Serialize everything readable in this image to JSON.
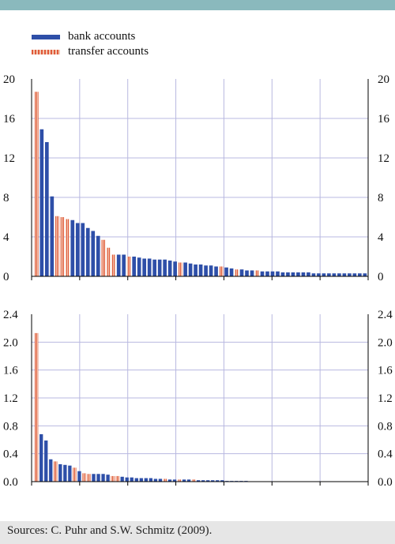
{
  "legend": {
    "bank_label": "bank accounts",
    "transfer_label": "transfer accounts"
  },
  "source": "Sources: C. Puhr and S.W. Schmitz (2009).",
  "colors": {
    "bank": "#2e4fa8",
    "transfer": "#e3a48c",
    "grid": "#b8b8e0",
    "band": "#8ab9bd"
  },
  "chart_data": [
    {
      "type": "bar",
      "ylim": [
        0,
        20
      ],
      "yticks": [
        "0",
        "4",
        "8",
        "12",
        "16",
        "20"
      ],
      "bars": [
        {
          "cat": "transfer",
          "value": 18.7
        },
        {
          "cat": "bank",
          "value": 14.9
        },
        {
          "cat": "bank",
          "value": 13.6
        },
        {
          "cat": "bank",
          "value": 8.1
        },
        {
          "cat": "transfer",
          "value": 6.1
        },
        {
          "cat": "transfer",
          "value": 6.0
        },
        {
          "cat": "transfer",
          "value": 5.8
        },
        {
          "cat": "bank",
          "value": 5.7
        },
        {
          "cat": "bank",
          "value": 5.4
        },
        {
          "cat": "bank",
          "value": 5.4
        },
        {
          "cat": "bank",
          "value": 4.9
        },
        {
          "cat": "bank",
          "value": 4.6
        },
        {
          "cat": "bank",
          "value": 4.1
        },
        {
          "cat": "transfer",
          "value": 3.7
        },
        {
          "cat": "transfer",
          "value": 2.9
        },
        {
          "cat": "transfer",
          "value": 2.2
        },
        {
          "cat": "bank",
          "value": 2.2
        },
        {
          "cat": "bank",
          "value": 2.2
        },
        {
          "cat": "transfer",
          "value": 2.0
        },
        {
          "cat": "bank",
          "value": 2.0
        },
        {
          "cat": "bank",
          "value": 1.9
        },
        {
          "cat": "bank",
          "value": 1.8
        },
        {
          "cat": "bank",
          "value": 1.8
        },
        {
          "cat": "bank",
          "value": 1.7
        },
        {
          "cat": "bank",
          "value": 1.7
        },
        {
          "cat": "bank",
          "value": 1.7
        },
        {
          "cat": "bank",
          "value": 1.6
        },
        {
          "cat": "bank",
          "value": 1.5
        },
        {
          "cat": "transfer",
          "value": 1.4
        },
        {
          "cat": "bank",
          "value": 1.4
        },
        {
          "cat": "bank",
          "value": 1.3
        },
        {
          "cat": "bank",
          "value": 1.2
        },
        {
          "cat": "bank",
          "value": 1.2
        },
        {
          "cat": "bank",
          "value": 1.1
        },
        {
          "cat": "bank",
          "value": 1.1
        },
        {
          "cat": "bank",
          "value": 1.0
        },
        {
          "cat": "transfer",
          "value": 1.0
        },
        {
          "cat": "bank",
          "value": 0.9
        },
        {
          "cat": "bank",
          "value": 0.8
        },
        {
          "cat": "transfer",
          "value": 0.7
        },
        {
          "cat": "bank",
          "value": 0.7
        },
        {
          "cat": "bank",
          "value": 0.6
        },
        {
          "cat": "bank",
          "value": 0.6
        },
        {
          "cat": "transfer",
          "value": 0.6
        },
        {
          "cat": "bank",
          "value": 0.5
        },
        {
          "cat": "bank",
          "value": 0.5
        },
        {
          "cat": "bank",
          "value": 0.5
        },
        {
          "cat": "bank",
          "value": 0.5
        },
        {
          "cat": "bank",
          "value": 0.4
        },
        {
          "cat": "bank",
          "value": 0.4
        },
        {
          "cat": "bank",
          "value": 0.4
        },
        {
          "cat": "bank",
          "value": 0.4
        },
        {
          "cat": "bank",
          "value": 0.4
        },
        {
          "cat": "bank",
          "value": 0.4
        },
        {
          "cat": "bank",
          "value": 0.3
        },
        {
          "cat": "bank",
          "value": 0.3
        },
        {
          "cat": "bank",
          "value": 0.3
        },
        {
          "cat": "bank",
          "value": 0.3
        },
        {
          "cat": "bank",
          "value": 0.3
        },
        {
          "cat": "bank",
          "value": 0.3
        },
        {
          "cat": "bank",
          "value": 0.3
        },
        {
          "cat": "bank",
          "value": 0.3
        },
        {
          "cat": "bank",
          "value": 0.3
        },
        {
          "cat": "bank",
          "value": 0.3
        },
        {
          "cat": "bank",
          "value": 0.3
        }
      ]
    },
    {
      "type": "bar",
      "ylim": [
        0,
        2.4
      ],
      "yticks": [
        "0.0",
        "0.4",
        "0.8",
        "1.2",
        "1.6",
        "2.0",
        "2.4"
      ],
      "bars": [
        {
          "cat": "transfer",
          "value": 2.13
        },
        {
          "cat": "bank",
          "value": 0.68
        },
        {
          "cat": "bank",
          "value": 0.59
        },
        {
          "cat": "bank",
          "value": 0.32
        },
        {
          "cat": "transfer",
          "value": 0.29
        },
        {
          "cat": "bank",
          "value": 0.25
        },
        {
          "cat": "bank",
          "value": 0.24
        },
        {
          "cat": "bank",
          "value": 0.23
        },
        {
          "cat": "transfer",
          "value": 0.2
        },
        {
          "cat": "bank",
          "value": 0.15
        },
        {
          "cat": "transfer",
          "value": 0.12
        },
        {
          "cat": "transfer",
          "value": 0.11
        },
        {
          "cat": "bank",
          "value": 0.11
        },
        {
          "cat": "bank",
          "value": 0.11
        },
        {
          "cat": "bank",
          "value": 0.11
        },
        {
          "cat": "bank",
          "value": 0.1
        },
        {
          "cat": "transfer",
          "value": 0.08
        },
        {
          "cat": "transfer",
          "value": 0.08
        },
        {
          "cat": "bank",
          "value": 0.07
        },
        {
          "cat": "bank",
          "value": 0.06
        },
        {
          "cat": "bank",
          "value": 0.06
        },
        {
          "cat": "bank",
          "value": 0.05
        },
        {
          "cat": "bank",
          "value": 0.05
        },
        {
          "cat": "bank",
          "value": 0.05
        },
        {
          "cat": "bank",
          "value": 0.05
        },
        {
          "cat": "bank",
          "value": 0.04
        },
        {
          "cat": "bank",
          "value": 0.04
        },
        {
          "cat": "transfer",
          "value": 0.04
        },
        {
          "cat": "bank",
          "value": 0.03
        },
        {
          "cat": "bank",
          "value": 0.03
        },
        {
          "cat": "transfer",
          "value": 0.03
        },
        {
          "cat": "bank",
          "value": 0.03
        },
        {
          "cat": "bank",
          "value": 0.03
        },
        {
          "cat": "transfer",
          "value": 0.03
        },
        {
          "cat": "bank",
          "value": 0.02
        },
        {
          "cat": "bank",
          "value": 0.02
        },
        {
          "cat": "bank",
          "value": 0.02
        },
        {
          "cat": "bank",
          "value": 0.02
        },
        {
          "cat": "bank",
          "value": 0.02
        },
        {
          "cat": "bank",
          "value": 0.02
        },
        {
          "cat": "bank",
          "value": 0.01
        },
        {
          "cat": "bank",
          "value": 0.01
        },
        {
          "cat": "bank",
          "value": 0.01
        },
        {
          "cat": "bank",
          "value": 0.01
        },
        {
          "cat": "bank",
          "value": 0.01
        }
      ]
    }
  ]
}
